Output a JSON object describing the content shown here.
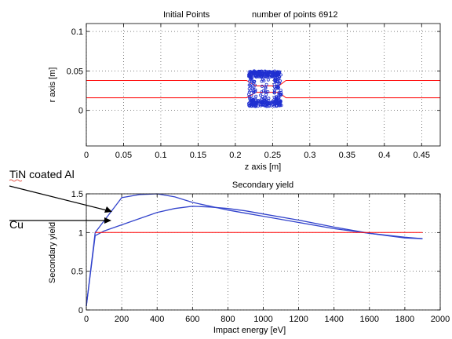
{
  "figure": {
    "top_title_left": "Initial Points",
    "top_title_right": "number of points 6912",
    "annotation_tin": "TiN coated Al",
    "annotation_cu": "Cu"
  },
  "chart_data": [
    {
      "type": "line",
      "title": "Initial Points",
      "xlabel": "z axis [m]",
      "ylabel": "r axis [m]",
      "xlim": [
        0,
        0.475
      ],
      "ylim": [
        -0.045,
        0.11
      ],
      "xticks": [
        0,
        0.05,
        0.1,
        0.15,
        0.2,
        0.25,
        0.3,
        0.35,
        0.4,
        0.45
      ],
      "xtick_labels": [
        "0",
        "0.05",
        "0.1",
        "0.15",
        "0.2",
        "0.25",
        "0.3",
        "0.35",
        "0.4",
        "0.45"
      ],
      "yticks": [
        0,
        0.05,
        0.1
      ],
      "ytick_labels": [
        "0",
        "0.05",
        "0.1"
      ],
      "grid": true,
      "colors": {
        "boundary": "#ff0000",
        "points": "#1f2fd0"
      },
      "series": [
        {
          "values": [
            [
              0,
              0.038
            ],
            [
              0.205,
              0.038
            ],
            [
              0.215,
              0.038
            ],
            [
              0.228,
              0.031
            ],
            [
              0.258,
              0.031
            ],
            [
              0.268,
              0.038
            ],
            [
              0.475,
              0.038
            ]
          ]
        },
        {
          "values": [
            [
              0,
              0.016
            ],
            [
              0.205,
              0.016
            ],
            [
              0.215,
              0.016
            ],
            [
              0.228,
              0.023
            ],
            [
              0.258,
              0.023
            ],
            [
              0.268,
              0.016
            ],
            [
              0.475,
              0.016
            ]
          ]
        }
      ],
      "point_cloud": {
        "z_range": [
          0.218,
          0.262
        ],
        "r_range": [
          0.005,
          0.05
        ]
      }
    },
    {
      "type": "line",
      "title": "Secondary yield",
      "xlabel": "Impact energy [eV]",
      "ylabel": "Secondary yield",
      "xlim": [
        0,
        2000
      ],
      "ylim": [
        0,
        1.5
      ],
      "xticks": [
        0,
        200,
        400,
        600,
        800,
        1000,
        1200,
        1400,
        1600,
        1800,
        2000
      ],
      "xtick_labels": [
        "0",
        "200",
        "400",
        "600",
        "800",
        "1000",
        "1200",
        "1400",
        "1600",
        "1800",
        "2000"
      ],
      "yticks": [
        0,
        0.5,
        1,
        1.5
      ],
      "ytick_labels": [
        "0",
        "0.5",
        "1",
        "1.5"
      ],
      "grid": true,
      "colors": {
        "curves": "#3344cc",
        "reference": "#ff0000"
      },
      "series": [
        {
          "values": [
            [
              0,
              0.05
            ],
            [
              50,
              1.0
            ],
            [
              100,
              1.15
            ],
            [
              200,
              1.45
            ],
            [
              300,
              1.49
            ],
            [
              400,
              1.5
            ],
            [
              500,
              1.46
            ],
            [
              600,
              1.39
            ],
            [
              700,
              1.34
            ],
            [
              800,
              1.29
            ],
            [
              900,
              1.25
            ],
            [
              1000,
              1.21
            ],
            [
              1200,
              1.13
            ],
            [
              1400,
              1.05
            ],
            [
              1600,
              0.99
            ],
            [
              1800,
              0.94
            ],
            [
              1900,
              0.92
            ]
          ]
        },
        {
          "values": [
            [
              0,
              0.05
            ],
            [
              50,
              0.96
            ],
            [
              100,
              1.02
            ],
            [
              200,
              1.1
            ],
            [
              300,
              1.18
            ],
            [
              400,
              1.26
            ],
            [
              500,
              1.31
            ],
            [
              600,
              1.34
            ],
            [
              700,
              1.33
            ],
            [
              800,
              1.31
            ],
            [
              900,
              1.28
            ],
            [
              1000,
              1.24
            ],
            [
              1200,
              1.16
            ],
            [
              1400,
              1.07
            ],
            [
              1600,
              0.99
            ],
            [
              1800,
              0.93
            ],
            [
              1900,
              0.92
            ]
          ]
        },
        {
          "values": [
            [
              50,
              1.0
            ],
            [
              1900,
              1.0
            ]
          ]
        }
      ]
    }
  ]
}
